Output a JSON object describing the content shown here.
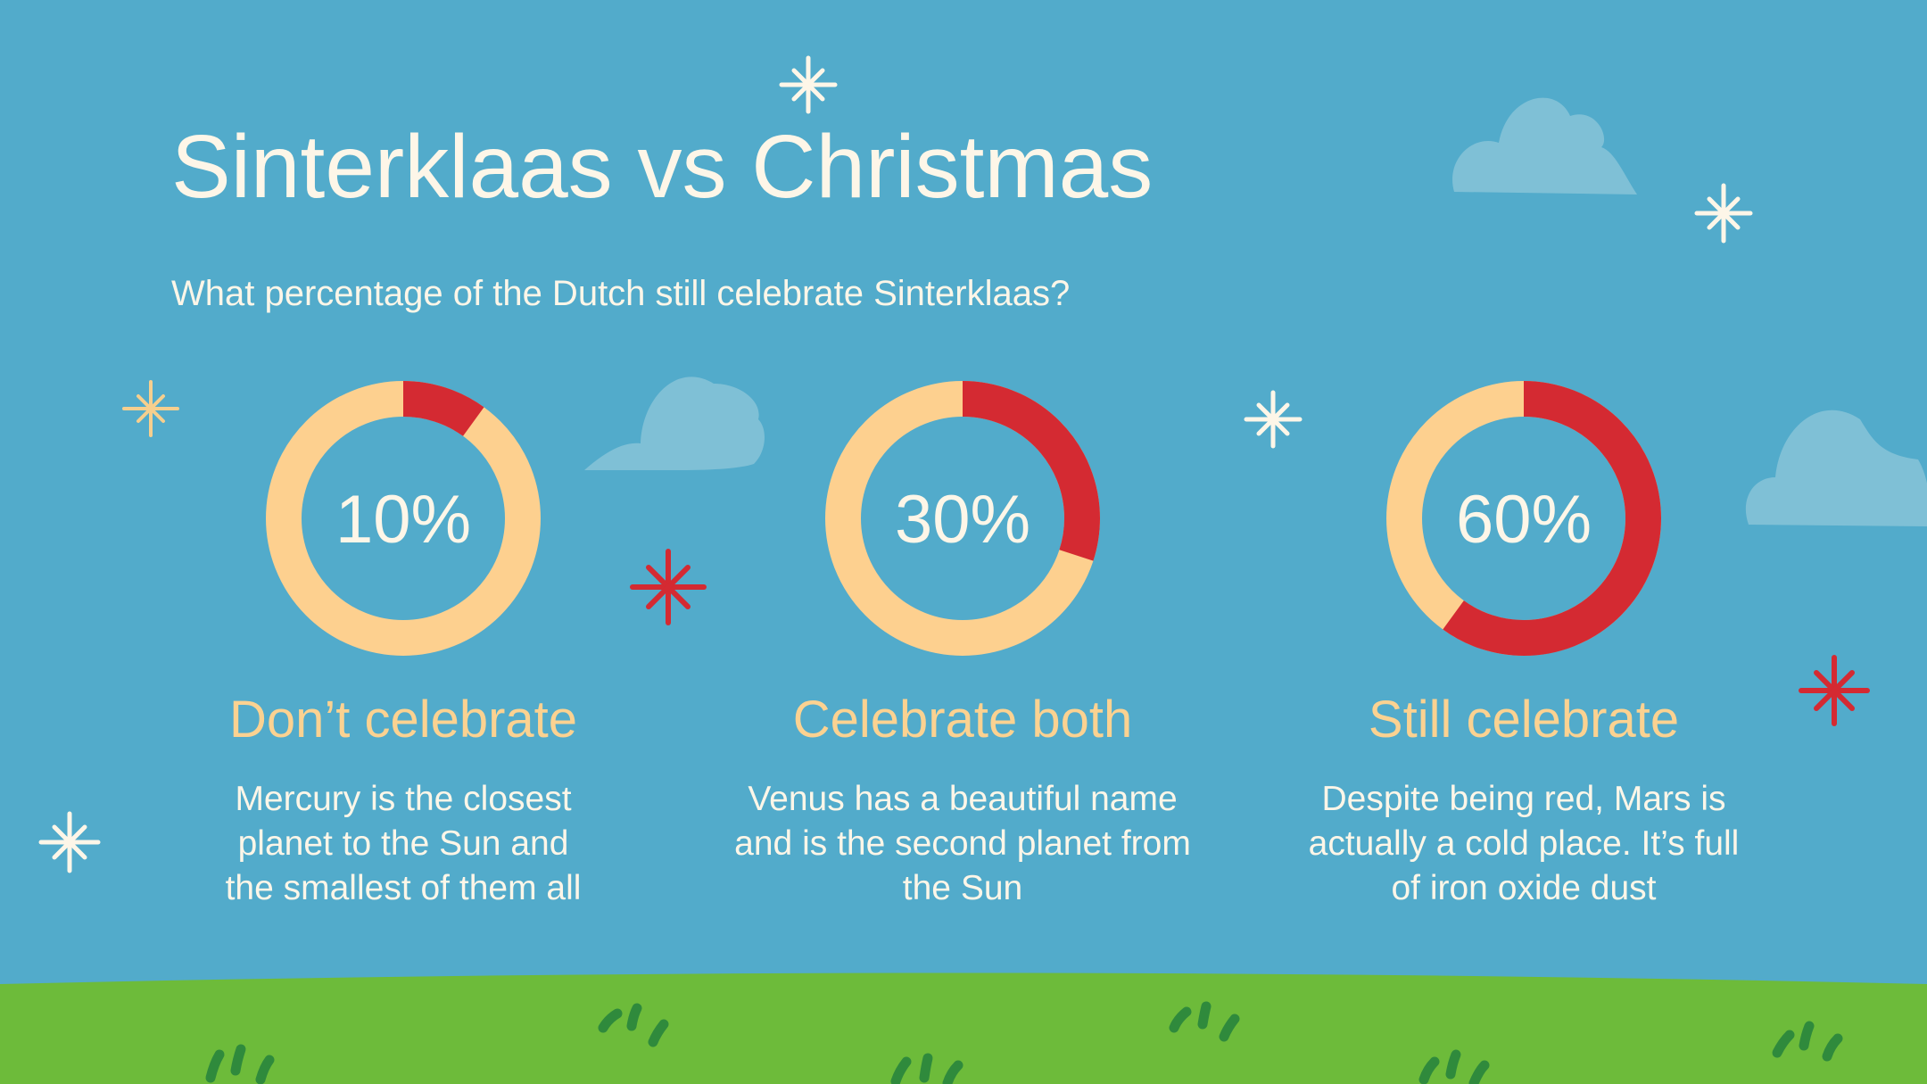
{
  "slide": {
    "title": "Sinterklaas vs Christmas",
    "subtitle": "What percentage of the Dutch still celebrate Sinterklaas?"
  },
  "colors": {
    "sky": "#52abcb",
    "grass": "#6dbb3a",
    "grass_tuft": "#2f8a3c",
    "ring_base": "#fdd08f",
    "ring_accent": "#d42a32",
    "cloud": "#7fc0d6",
    "sparkle_white": "#fdf6e8",
    "sparkle_yellow": "#f6cf8e",
    "sparkle_red": "#d42a32",
    "heading_yellow": "#fbd291",
    "text": "#fdf6e8"
  },
  "chart_data": {
    "type": "pie",
    "style": "donut",
    "unit": "%",
    "items": [
      {
        "value": 10,
        "label": "10%",
        "title": "Don’t celebrate",
        "description": "Mercury is the closest planet to the Sun and the smallest of them all"
      },
      {
        "value": 30,
        "label": "30%",
        "title": "Celebrate both",
        "description": "Venus has a beautiful name and is the second planet from the Sun"
      },
      {
        "value": 60,
        "label": "60%",
        "title": "Still celebrate",
        "description": "Despite being red, Mars is actually a cold place. It’s full of iron oxide dust"
      }
    ]
  }
}
